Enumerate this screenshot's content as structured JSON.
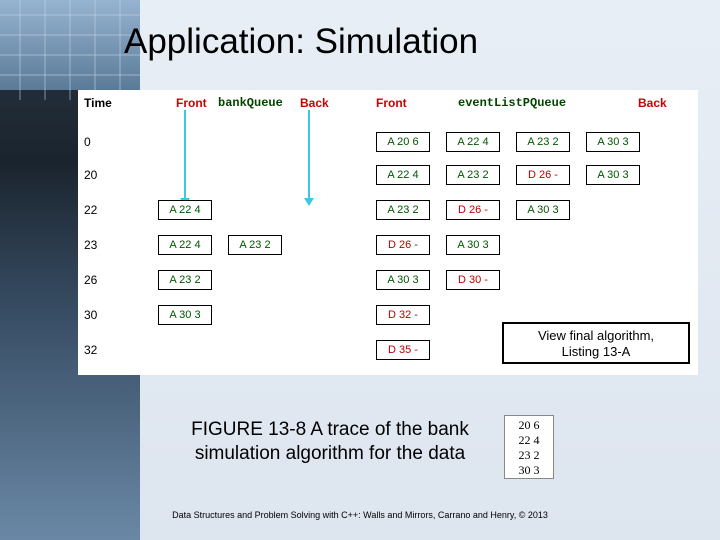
{
  "title": "Application: Simulation",
  "headers": {
    "time": "Time",
    "front1": "Front",
    "bankQueue": "bankQueue",
    "back1": "Back",
    "front2": "Front",
    "eventListPQueue": "eventListPQueue",
    "back2": "Back"
  },
  "times": [
    "0",
    "20",
    "22",
    "23",
    "26",
    "30",
    "32"
  ],
  "bankQueueRows": [
    [],
    [],
    [
      {
        "t": "A 22 4",
        "c": "g"
      }
    ],
    [
      {
        "t": "A 22 4",
        "c": "g"
      },
      {
        "t": "A 23 2",
        "c": "g"
      }
    ],
    [
      {
        "t": "A 23 2",
        "c": "g"
      }
    ],
    [
      {
        "t": "A 30 3",
        "c": "g"
      }
    ],
    []
  ],
  "eventRows": [
    [
      {
        "t": "A 20 6",
        "c": "g"
      },
      {
        "t": "A 22 4",
        "c": "g"
      },
      {
        "t": "A 23 2",
        "c": "g"
      },
      {
        "t": "A 30 3",
        "c": "g"
      }
    ],
    [
      {
        "t": "A 22 4",
        "c": "g"
      },
      {
        "t": "A 23 2",
        "c": "g"
      },
      {
        "t": "D 26 -",
        "c": "r"
      },
      {
        "t": "A 30 3",
        "c": "g"
      }
    ],
    [
      {
        "t": "A 23 2",
        "c": "g"
      },
      {
        "t": "D 26 -",
        "c": "r"
      },
      {
        "t": "A 30 3",
        "c": "g"
      }
    ],
    [
      {
        "t": "D 26 -",
        "c": "r"
      },
      {
        "t": "A 30 3",
        "c": "g"
      }
    ],
    [
      {
        "t": "A 30 3",
        "c": "g"
      },
      {
        "t": "D 30 -",
        "c": "r"
      }
    ],
    [
      {
        "t": "D 32 -",
        "c": "r"
      }
    ],
    [
      {
        "t": "D 35 -",
        "c": "r"
      }
    ]
  ],
  "linkBox": {
    "line1": "View final algorithm,",
    "line2": "Listing 13-A"
  },
  "caption": "FIGURE 13-8 A trace of the bank simulation algorithm for the data",
  "dataBox": [
    "20 6",
    "22 4",
    "23 2",
    "30 3"
  ],
  "footer": "Data Structures and Problem Solving with C++: Walls and Mirrors, Carrano and Henry, © 2013",
  "layout": {
    "rowTops": [
      45,
      78,
      113,
      148,
      183,
      218,
      253
    ],
    "bankStartX": 80,
    "eventStartX": 298,
    "cellGap": 70
  }
}
